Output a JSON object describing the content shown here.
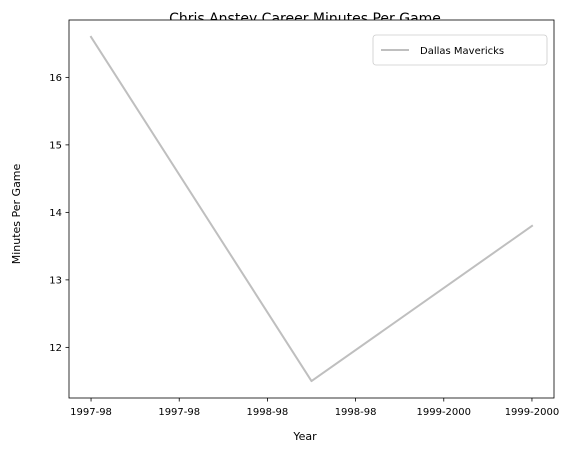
{
  "chart_data": {
    "type": "line",
    "title": "Chris Anstey Career Minutes Per Game",
    "xlabel": "Year",
    "ylabel": "Minutes Per Game",
    "x_tick_labels": [
      "1997-98",
      "1997-98",
      "1998-98",
      "1998-98",
      "1999-2000",
      "1999-2000"
    ],
    "y_ticks": [
      12,
      13,
      14,
      15,
      16
    ],
    "ylim": [
      11.25,
      16.85
    ],
    "xlim": [
      -0.1,
      2.1
    ],
    "legend_position": "top-right",
    "grid": false,
    "series": [
      {
        "name": "Dallas Mavericks",
        "color": "#bfbfbf",
        "points": [
          {
            "x": 0,
            "y": 16.6
          },
          {
            "x": 1,
            "y": 11.5
          },
          {
            "x": 2,
            "y": 13.8
          }
        ]
      }
    ]
  }
}
